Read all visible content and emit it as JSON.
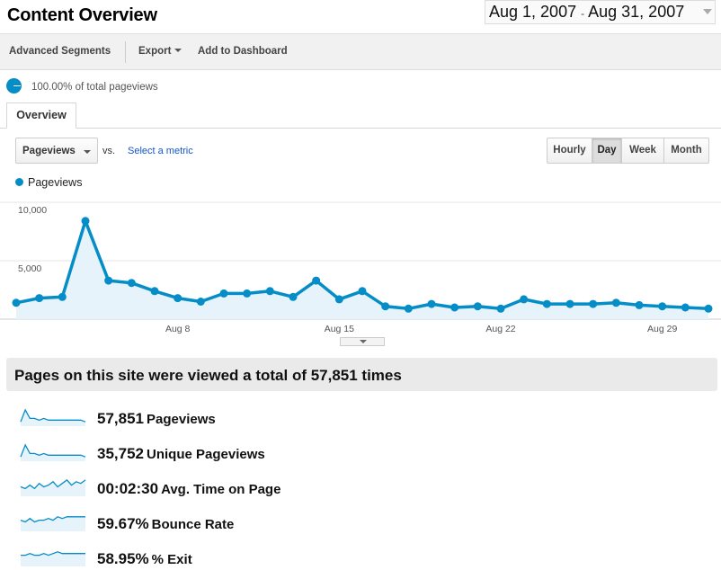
{
  "header": {
    "title": "Content Overview",
    "date_start": "Aug 1, 2007",
    "date_sep": "-",
    "date_end": "Aug 31, 2007"
  },
  "toolbar": {
    "advanced_segments": "Advanced Segments",
    "export": "Export",
    "add_to_dashboard": "Add to Dashboard"
  },
  "segment": {
    "percent_text": "100.00% of total pageviews"
  },
  "tabs": [
    {
      "label": "Overview"
    }
  ],
  "controls": {
    "metric": "Pageviews",
    "vs": "vs.",
    "select_metric": "Select a metric",
    "periods": [
      "Hourly",
      "Day",
      "Week",
      "Month"
    ],
    "active_period": "Day"
  },
  "colors": {
    "series": "#058dc7",
    "area": "#e6f3fa"
  },
  "chart_data": {
    "type": "area",
    "series": [
      {
        "name": "Pageviews",
        "x": [
          "Aug 1",
          "Aug 2",
          "Aug 3",
          "Aug 4",
          "Aug 5",
          "Aug 6",
          "Aug 7",
          "Aug 8",
          "Aug 9",
          "Aug 10",
          "Aug 11",
          "Aug 12",
          "Aug 13",
          "Aug 14",
          "Aug 15",
          "Aug 16",
          "Aug 17",
          "Aug 18",
          "Aug 19",
          "Aug 20",
          "Aug 21",
          "Aug 22",
          "Aug 23",
          "Aug 24",
          "Aug 25",
          "Aug 26",
          "Aug 27",
          "Aug 28",
          "Aug 29",
          "Aug 30",
          "Aug 31"
        ],
        "values": [
          1400,
          1800,
          1900,
          8400,
          3300,
          3100,
          2400,
          1800,
          1500,
          2200,
          2200,
          2400,
          1900,
          3300,
          1700,
          2400,
          1100,
          900,
          1300,
          1000,
          1100,
          900,
          1700,
          1300,
          1300,
          1300,
          1400,
          1200,
          1100,
          1000,
          900
        ]
      }
    ],
    "y_ticks": [
      "10,000",
      "5,000"
    ],
    "y_tick_values": [
      10000,
      5000
    ],
    "x_ticks": [
      "Aug 8",
      "Aug 15",
      "Aug 22",
      "Aug 29"
    ],
    "ylim": [
      0,
      10000
    ],
    "grid": true
  },
  "summary": {
    "headline": "Pages on this site were viewed a total of 57,851 times"
  },
  "stats": [
    {
      "value": "57,851",
      "label": "Pageviews",
      "spark": [
        2,
        9,
        4,
        4,
        3,
        4,
        3,
        3,
        3,
        3,
        3,
        3,
        3,
        3,
        2
      ]
    },
    {
      "value": "35,752",
      "label": "Unique Pageviews",
      "spark": [
        2,
        9,
        4,
        4,
        3,
        4,
        3,
        3,
        3,
        3,
        3,
        3,
        3,
        3,
        2
      ]
    },
    {
      "value": "00:02:30",
      "label": "Avg. Time on Page",
      "spark": [
        5,
        4,
        6,
        4,
        7,
        5,
        6,
        8,
        5,
        7,
        9,
        6,
        8,
        7,
        9
      ]
    },
    {
      "value": "59.67%",
      "label": "Bounce Rate",
      "spark": [
        6,
        5,
        7,
        5,
        6,
        6,
        7,
        6,
        8,
        7,
        8,
        8,
        8,
        8,
        8
      ]
    },
    {
      "value": "58.95%",
      "label": "% Exit",
      "spark": [
        6,
        6,
        7,
        6,
        6,
        7,
        6,
        7,
        8,
        7,
        7,
        7,
        7,
        7,
        7
      ]
    }
  ]
}
